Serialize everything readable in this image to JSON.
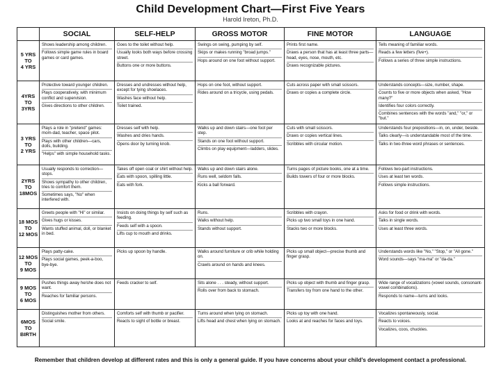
{
  "title": "Child Development Chart—First Five Years",
  "author": "Harold Ireton, Ph.D.",
  "headers": [
    "",
    "SOCIAL",
    "SELF-HELP",
    "GROSS MOTOR",
    "FINE MOTOR",
    "LANGUAGE"
  ],
  "rows": [
    {
      "age": [
        "5 YRS",
        "TO",
        "4 YRS"
      ],
      "social": [
        "Shows leadership among children.",
        "Follows simple game rules in board games or card games."
      ],
      "selfhelp": [
        "Goes to the toilet without help.",
        "Usually looks both ways before crossing street.",
        "Buttons one or more buttons."
      ],
      "gross": [
        "Swings on swing, pumping by self.",
        "Skips or makes running \"broad jumps.\"",
        "Hops around on one foot without support."
      ],
      "fine": [
        "Prints first name.",
        "Draws a person that has at least three parts—head, eyes, nose, mouth, etc.",
        "Draws recognizable pictures."
      ],
      "language": [
        "Tells meaning of familiar words.",
        "Reads a few letters (five+).",
        "Follows a series of three simple instructions."
      ]
    },
    {
      "age": [
        "4YRS",
        "TO",
        "3YRS"
      ],
      "social": [
        "Protective toward younger children.",
        "Plays cooperatively, with minimum conflict and supervision.",
        "Gives directions to other children."
      ],
      "selfhelp": [
        "Dresses and undresses without help, except for tying shoelaces.",
        "Washes face without help.",
        "Toilet trained."
      ],
      "gross": [
        "Hops on one foot, without support.",
        "Rides around on a tricycle, using pedals."
      ],
      "fine": [
        "Cuts across paper with small scissors.",
        "Draws or copies a complete circle."
      ],
      "language": [
        "Understands concepts—size, number, shape.",
        "Counts to five or more objects when asked, \"How many?\"",
        "Identifies four colors correctly.",
        "Combines sentences with the words \"and,\" \"or,\" or \"but.\""
      ]
    },
    {
      "age": [
        "3 YRS",
        "TO",
        "2 YRS"
      ],
      "social": [
        "Plays a role in \"pretend\" games: mom-dad, teacher, space pilot.",
        "Plays with other children—cars, dolls, building.",
        "\"Helps\" with simple household tasks."
      ],
      "selfhelp": [
        "Dresses self with help.",
        "Washes and dries hands.",
        "Opens door by turning knob."
      ],
      "gross": [
        "Walks up and down stairs—one foot per step.",
        "Stands on one foot without support.",
        "Climbs on play equipment—ladders, slides."
      ],
      "fine": [
        "Cuts with small scissors.",
        "Draws or copies vertical lines.",
        "Scribbles with circular motion."
      ],
      "language": [
        "Understands four prepositions—in, on, under, beside.",
        "Talks clearly—is understandable most of the time.",
        "Talks in two-three word phrases or sentences."
      ]
    },
    {
      "age": [
        "2YRS",
        "TO",
        "18MOS"
      ],
      "social": [
        "Usually responds to correction—stops.",
        "Shows sympathy to other children, tries to comfort them.",
        "Sometimes says, \"No\" when interfered with."
      ],
      "selfhelp": [
        "Takes off open coat or shirt without help.",
        "Eats with spoon, spilling little.",
        "Eats with fork."
      ],
      "gross": [
        "Walks up and down stairs alone.",
        "Runs well, seldom falls.",
        "Kicks a ball forward."
      ],
      "fine": [
        "Turns pages of picture books, one at a time.",
        "Builds towers of four or more blocks."
      ],
      "language": [
        "Follows two-part instructions.",
        "Uses at least ten words.",
        "Follows simple instructions."
      ]
    },
    {
      "age": [
        "18 MOS",
        "TO",
        "12 MOS"
      ],
      "social": [
        "Greets people with \"Hi\" or similar.",
        "Gives hugs or kisses.",
        "Wants stuffed animal, doll, or blanket in bed."
      ],
      "selfhelp": [
        "Insists on doing things by self such as feeding.",
        "Feeds self with a spoon.",
        "Lifts cup to mouth and drinks."
      ],
      "gross": [
        "Runs.",
        "Walks without help.",
        "Stands without support."
      ],
      "fine": [
        "Scribbles with crayon.",
        "Picks up two small toys in one hand.",
        "Stacks two or more blocks."
      ],
      "language": [
        "Asks for food or drink with words.",
        "Talks in single words.",
        "Uses at least three words."
      ]
    },
    {
      "age": [
        "12 MOS",
        "TO",
        "9 MOS"
      ],
      "social": [
        "Plays patty-cake.",
        "Plays social games, peek-a-boo, bye-bye."
      ],
      "selfhelp": [
        "Picks up spoon by handle."
      ],
      "gross": [
        "Walks around furniture or crib while holding on.",
        "Crawls around on hands and knees."
      ],
      "fine": [
        "Picks up small object—precise thumb and finger grasp."
      ],
      "language": [
        "Understands words like \"No,\" \"Stop,\" or \"All gone.\"",
        "Word sounds—says \"ma-ma\" or \"da-da.\""
      ]
    },
    {
      "age": [
        "9 MOS",
        "TO",
        "6 MOS"
      ],
      "social": [
        "Pushes things away he/she does not want.",
        "Reaches for familiar persons."
      ],
      "selfhelp": [
        "Feeds cracker to self."
      ],
      "gross": [
        "Sits alone . . . steady, without support.",
        "Rolls over from back to stomach."
      ],
      "fine": [
        "Picks up object with thumb and finger grasp.",
        "Transfers toy from one hand to the other."
      ],
      "language": [
        "Wide range of vocalizations (vowel sounds, consonant-vowel combinations).",
        "Responds to name—turns and looks."
      ]
    },
    {
      "age": [
        "6MOS",
        "TO",
        "BIRTH"
      ],
      "social": [
        "Distinguishes mother from others.",
        "Social smile."
      ],
      "selfhelp": [
        "Comforts self with thumb or pacifier.",
        "Reacts to sight of bottle or breast."
      ],
      "gross": [
        "Turns around when lying on stomach.",
        "Lifts head and chest when lying on stomach."
      ],
      "fine": [
        "Picks up toy with one hand.",
        "Looks at and reaches for faces and toys."
      ],
      "language": [
        "Vocalizes spontaneously, social.",
        "Reacts to voices.",
        "Vocalizes, coos, chuckles."
      ]
    }
  ],
  "footer": "Remember that children develop at different rates and this is only a general guide. If you have concerns about your child’s development contact a professional."
}
